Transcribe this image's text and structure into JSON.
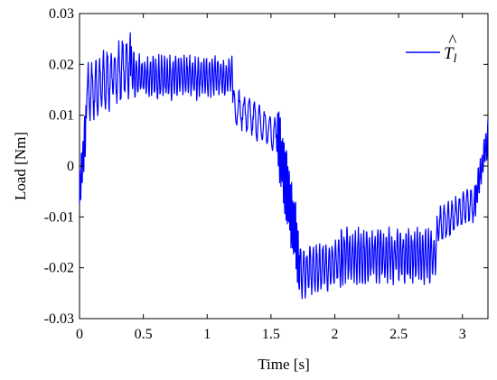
{
  "chart_data": {
    "type": "line",
    "xlabel": "Time [s]",
    "ylabel": "Load [Nm]",
    "xlim": [
      0,
      3.2
    ],
    "ylim": [
      -0.03,
      0.03
    ],
    "x_ticks": [
      0,
      0.5,
      1,
      1.5,
      2,
      2.5,
      3
    ],
    "x_tick_labels": [
      "0",
      "0.5",
      "1",
      "1.5",
      "2",
      "2.5",
      "3"
    ],
    "y_ticks": [
      -0.03,
      -0.02,
      -0.01,
      0,
      0.01,
      0.02,
      0.03
    ],
    "y_tick_labels": [
      "-0.03",
      "-0.02",
      "-0.01",
      "0",
      "0.01",
      "0.02",
      "0.03"
    ],
    "grid": false,
    "legend_position": "top-right",
    "series": [
      {
        "name": "T̂l",
        "legend_base": "T",
        "legend_hat": "^",
        "legend_sub": "l",
        "color": "#0000ff",
        "segments": [
          {
            "x0": 0.0,
            "x1": 0.05,
            "center_start": -0.006,
            "center_end": 0.008,
            "amp": 0.004,
            "period": 0.012
          },
          {
            "x0": 0.05,
            "x1": 0.4,
            "center_start": 0.014,
            "center_end": 0.02,
            "amp": 0.005,
            "period": 0.03
          },
          {
            "x0": 0.4,
            "x1": 0.45,
            "center_start": 0.019,
            "center_end": 0.017,
            "amp": 0.004,
            "period": 0.02
          },
          {
            "x0": 0.45,
            "x1": 1.2,
            "center_start": 0.0175,
            "center_end": 0.0175,
            "amp": 0.0035,
            "period": 0.022
          },
          {
            "x0": 1.2,
            "x1": 1.55,
            "center_start": 0.012,
            "center_end": 0.006,
            "amp": 0.003,
            "period": 0.04
          },
          {
            "x0": 1.55,
            "x1": 1.72,
            "center_start": 0.006,
            "center_end": -0.018,
            "amp": 0.006,
            "period": 0.01
          },
          {
            "x0": 1.72,
            "x1": 2.05,
            "center_start": -0.021,
            "center_end": -0.019,
            "amp": 0.004,
            "period": 0.025
          },
          {
            "x0": 2.05,
            "x1": 2.8,
            "center_start": -0.0175,
            "center_end": -0.0175,
            "amp": 0.0045,
            "period": 0.022
          },
          {
            "x0": 2.8,
            "x1": 3.1,
            "center_start": -0.012,
            "center_end": -0.007,
            "amp": 0.003,
            "period": 0.03
          },
          {
            "x0": 3.1,
            "x1": 3.2,
            "center_start": -0.007,
            "center_end": 0.006,
            "amp": 0.003,
            "period": 0.015
          }
        ]
      }
    ]
  }
}
